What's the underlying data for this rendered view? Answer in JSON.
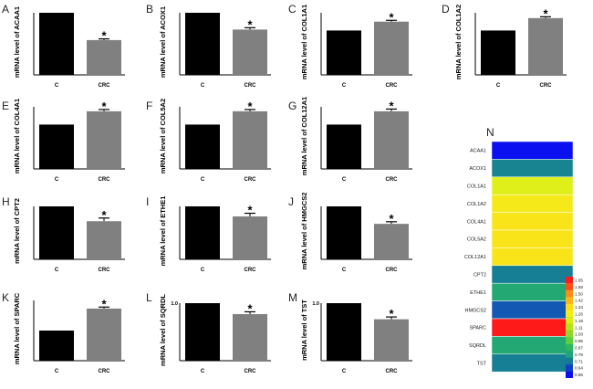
{
  "chart_data": [
    {
      "panel": "A",
      "gene": "ACAA1",
      "type": "bar",
      "ylabel": "mRNA level of ACAA1",
      "categories": [
        "C",
        "CRC"
      ],
      "values": [
        1.0,
        0.56
      ],
      "errors": [
        0,
        0.02
      ],
      "significance": [
        "",
        "*"
      ],
      "colors": [
        "#000000",
        "#808080"
      ],
      "ylim": [
        0,
        1.0
      ],
      "yticks": []
    },
    {
      "panel": "B",
      "gene": "ACOX1",
      "type": "bar",
      "ylabel": "mRNA level of ACOX1",
      "categories": [
        "C",
        "CRC"
      ],
      "values": [
        1.0,
        0.73
      ],
      "errors": [
        0,
        0.03
      ],
      "significance": [
        "",
        "*"
      ],
      "colors": [
        "#000000",
        "#808080"
      ],
      "ylim": [
        0,
        1.0
      ],
      "yticks": []
    },
    {
      "panel": "C",
      "gene": "COL1A1",
      "type": "bar",
      "ylabel": "mRNA level of COL1A1",
      "categories": [
        "C",
        "CRC"
      ],
      "values": [
        1.0,
        1.2
      ],
      "errors": [
        0,
        0.03
      ],
      "significance": [
        "",
        "*"
      ],
      "colors": [
        "#000000",
        "#808080"
      ],
      "ylim": [
        0,
        1.4
      ],
      "yticks": []
    },
    {
      "panel": "D",
      "gene": "COL1A2",
      "type": "bar",
      "ylabel": "mRNA level of COL1A2",
      "categories": [
        "C",
        "CRC"
      ],
      "values": [
        1.0,
        1.28
      ],
      "errors": [
        0,
        0.03
      ],
      "significance": [
        "",
        "*"
      ],
      "colors": [
        "#000000",
        "#808080"
      ],
      "ylim": [
        0,
        1.4
      ],
      "yticks": []
    },
    {
      "panel": "E",
      "gene": "COL4A1",
      "type": "bar",
      "ylabel": "mRNA level of COL4A1",
      "categories": [
        "C",
        "CRC"
      ],
      "values": [
        1.0,
        1.3
      ],
      "errors": [
        0,
        0.04
      ],
      "significance": [
        "",
        "*"
      ],
      "colors": [
        "#000000",
        "#808080"
      ],
      "ylim": [
        0,
        1.4
      ],
      "yticks": []
    },
    {
      "panel": "F",
      "gene": "COL5A2",
      "type": "bar",
      "ylabel": "mRNA level of COL5A2",
      "categories": [
        "C",
        "CRC"
      ],
      "values": [
        1.0,
        1.3
      ],
      "errors": [
        0,
        0.04
      ],
      "significance": [
        "",
        "*"
      ],
      "colors": [
        "#000000",
        "#808080"
      ],
      "ylim": [
        0,
        1.4
      ],
      "yticks": []
    },
    {
      "panel": "G",
      "gene": "COL12A1",
      "type": "bar",
      "ylabel": "mRNA level of COL12A1",
      "categories": [
        "C",
        "CRC"
      ],
      "values": [
        1.0,
        1.3
      ],
      "errors": [
        0,
        0.05
      ],
      "significance": [
        "",
        "*"
      ],
      "colors": [
        "#000000",
        "#808080"
      ],
      "ylim": [
        0,
        1.4
      ],
      "yticks": []
    },
    {
      "panel": "H",
      "gene": "CPT2",
      "type": "bar",
      "ylabel": "mRNA level of CPT2",
      "categories": [
        "C",
        "CRC"
      ],
      "values": [
        1.0,
        0.72
      ],
      "errors": [
        0,
        0.06
      ],
      "significance": [
        "",
        "*"
      ],
      "colors": [
        "#000000",
        "#808080"
      ],
      "ylim": [
        0,
        1.0
      ],
      "yticks": []
    },
    {
      "panel": "I",
      "gene": "ETHE1",
      "type": "bar",
      "ylabel": "mRNA level of ETHE1",
      "categories": [
        "C",
        "CRC"
      ],
      "values": [
        1.0,
        0.81
      ],
      "errors": [
        0,
        0.06
      ],
      "significance": [
        "",
        "*"
      ],
      "colors": [
        "#000000",
        "#808080"
      ],
      "ylim": [
        0,
        1.0
      ],
      "yticks": []
    },
    {
      "panel": "J",
      "gene": "HMGCS2",
      "type": "bar",
      "ylabel": "mRNA level of HMGCS2",
      "categories": [
        "C",
        "CRC"
      ],
      "values": [
        1.0,
        0.67
      ],
      "errors": [
        0,
        0.04
      ],
      "significance": [
        "",
        "*"
      ],
      "colors": [
        "#000000",
        "#808080"
      ],
      "ylim": [
        0,
        1.0
      ],
      "yticks": []
    },
    {
      "panel": "K",
      "gene": "SPARC",
      "type": "bar",
      "ylabel": "mRNA level of SPARC",
      "categories": [
        "C",
        "CRC"
      ],
      "values": [
        1.0,
        1.73
      ],
      "errors": [
        0,
        0.05
      ],
      "significance": [
        "",
        "*"
      ],
      "colors": [
        "#000000",
        "#808080"
      ],
      "ylim": [
        0,
        2.0
      ],
      "yticks": []
    },
    {
      "panel": "L",
      "gene": "SQRDL",
      "type": "bar",
      "ylabel": "mRNA level of SQRDL",
      "categories": [
        "C",
        "CRC"
      ],
      "values": [
        1.0,
        0.81
      ],
      "errors": [
        0,
        0.04
      ],
      "significance": [
        "",
        "*"
      ],
      "colors": [
        "#000000",
        "#808080"
      ],
      "ylim": [
        0,
        1.0
      ],
      "yticks": [
        "1.0"
      ]
    },
    {
      "panel": "M",
      "gene": "TST",
      "type": "bar",
      "ylabel": "mRNA level of TST",
      "categories": [
        "C",
        "CRC"
      ],
      "values": [
        1.0,
        0.72
      ],
      "errors": [
        0,
        0.04
      ],
      "significance": [
        "",
        "*"
      ],
      "colors": [
        "#000000",
        "#808080"
      ],
      "ylim": [
        0,
        1.0
      ],
      "yticks": [
        "1.0"
      ]
    },
    {
      "panel": "N",
      "type": "heatmap",
      "rows": [
        "ACAA1",
        "ACOX1",
        "COL1A1",
        "COL1A2",
        "COL4A1",
        "COL5A2",
        "COL12A1",
        "CPT2",
        "ETHE1",
        "HMGCS2",
        "SPARC",
        "SQRDL",
        "TST"
      ],
      "values": [
        0.56,
        0.73,
        1.2,
        1.28,
        1.3,
        1.3,
        1.3,
        0.72,
        0.81,
        0.67,
        1.73,
        0.81,
        0.72
      ],
      "colorscale": {
        "ticks": [
          "1.65",
          "1.58",
          "1.50",
          "1.42",
          "1.34",
          "1.26",
          "1.18",
          "1.11",
          "1.03",
          "0.95",
          "0.87",
          "0.79",
          "0.71",
          "0.64",
          "0.56"
        ],
        "colors": [
          "#ff1a1a",
          "#ff4d1a",
          "#ff8c1a",
          "#ffb31a",
          "#ffd91a",
          "#f2ee1a",
          "#d9ef1a",
          "#b3e61a",
          "#8cd92b",
          "#5ccd3f",
          "#2eb85e",
          "#1fa37a",
          "#167a99",
          "#1040c8",
          "#0a10f0"
        ]
      }
    }
  ]
}
